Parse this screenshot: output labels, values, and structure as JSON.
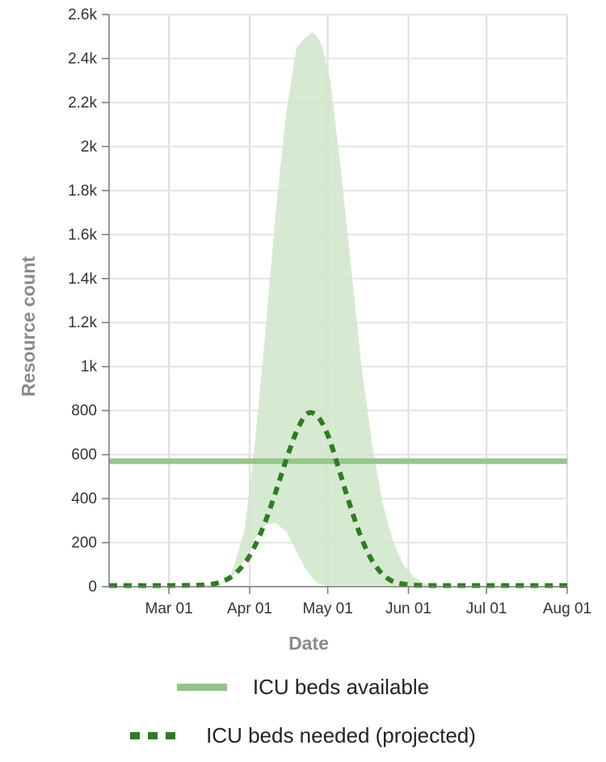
{
  "chart_data": {
    "type": "line",
    "xlabel": "Date",
    "ylabel": "Resource count",
    "ylim": [
      0,
      2600
    ],
    "xlim": [
      "2020-02-07",
      "2020-08-01"
    ],
    "y_ticks": [
      0,
      200,
      400,
      600,
      800,
      1000,
      1200,
      1400,
      1600,
      1800,
      2000,
      2200,
      2400,
      2600
    ],
    "y_tick_labels": [
      "0",
      "200",
      "400",
      "600",
      "800",
      "1k",
      "1.2k",
      "1.4k",
      "1.6k",
      "1.8k",
      "2k",
      "2.2k",
      "2.4k",
      "2.6k"
    ],
    "x_ticks": [
      "2020-03-01",
      "2020-04-01",
      "2020-05-01",
      "2020-06-01",
      "2020-07-01",
      "2020-08-01"
    ],
    "x_tick_labels": [
      "Mar 01",
      "Apr 01",
      "May 01",
      "Jun 01",
      "Jul 01",
      "Aug 01"
    ],
    "grid": true,
    "legend_position": "bottom",
    "series": [
      {
        "name": "ICU beds available",
        "style": "solid",
        "color": "#93c38a",
        "x": [
          "2020-02-07",
          "2020-08-01"
        ],
        "y": [
          570,
          570
        ]
      },
      {
        "name": "ICU beds needed (projected)",
        "style": "dotted",
        "color": "#2e7d22",
        "x": [
          "2020-02-07",
          "2020-03-01",
          "2020-03-15",
          "2020-03-20",
          "2020-03-25",
          "2020-03-30",
          "2020-04-03",
          "2020-04-07",
          "2020-04-11",
          "2020-04-15",
          "2020-04-19",
          "2020-04-23",
          "2020-04-27",
          "2020-05-01",
          "2020-05-05",
          "2020-05-09",
          "2020-05-13",
          "2020-05-17",
          "2020-05-21",
          "2020-05-25",
          "2020-05-29",
          "2020-06-03",
          "2020-06-10",
          "2020-06-20",
          "2020-08-01"
        ],
        "y": [
          5,
          5,
          8,
          18,
          45,
          105,
          185,
          295,
          430,
          575,
          705,
          785,
          775,
          690,
          545,
          390,
          250,
          140,
          70,
          30,
          14,
          7,
          5,
          5,
          5
        ]
      }
    ],
    "uncertainty_band": {
      "color": "#cfe6c9",
      "x": [
        "2020-03-20",
        "2020-03-25",
        "2020-03-30",
        "2020-04-03",
        "2020-04-07",
        "2020-04-11",
        "2020-04-15",
        "2020-04-19",
        "2020-04-22",
        "2020-04-25",
        "2020-04-27",
        "2020-04-29",
        "2020-05-02",
        "2020-05-06",
        "2020-05-10",
        "2020-05-14",
        "2020-05-18",
        "2020-05-22",
        "2020-05-26",
        "2020-05-30",
        "2020-06-03",
        "2020-06-07",
        "2020-06-15"
      ],
      "lower": [
        5,
        40,
        120,
        220,
        280,
        290,
        250,
        160,
        90,
        40,
        15,
        8,
        5,
        5,
        5,
        5,
        5,
        5,
        5,
        5,
        5,
        5,
        5
      ],
      "upper": [
        5,
        60,
        250,
        650,
        1150,
        1700,
        2150,
        2450,
        2490,
        2520,
        2500,
        2450,
        2300,
        1900,
        1450,
        1000,
        650,
        380,
        210,
        100,
        45,
        15,
        5
      ]
    }
  }
}
